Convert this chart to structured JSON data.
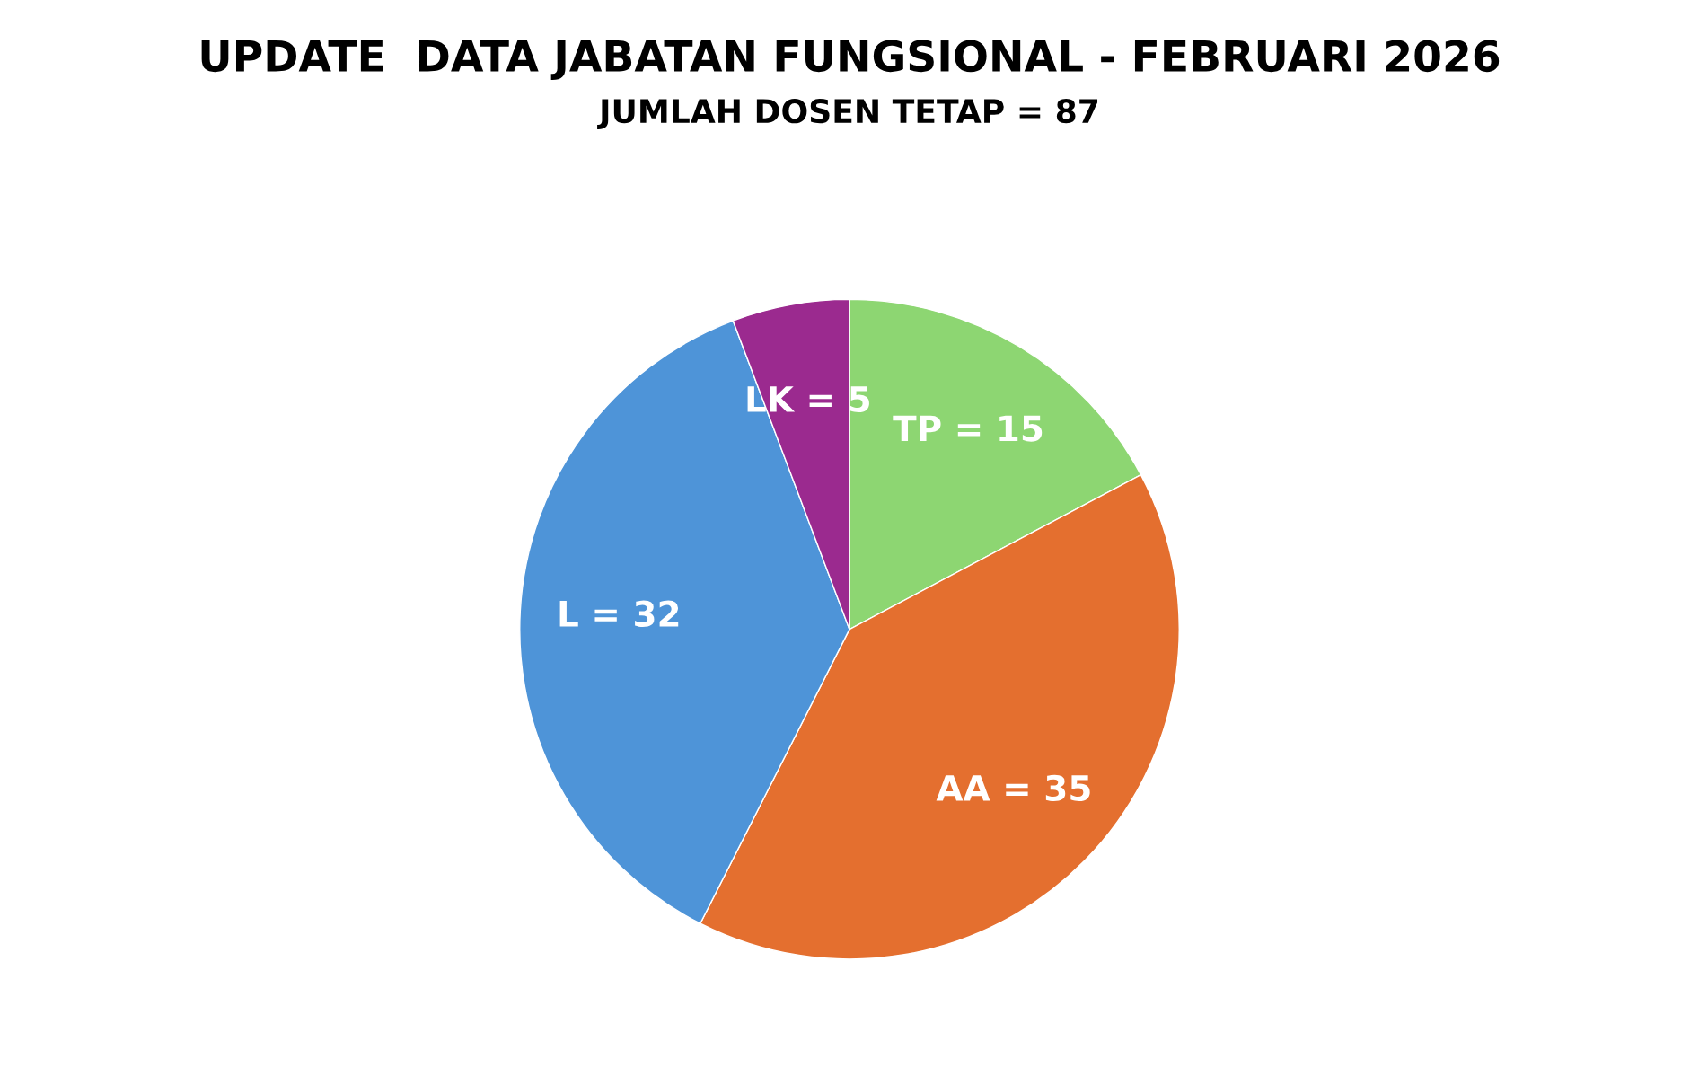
{
  "chart_data": {
    "type": "pie",
    "title": "UPDATE  DATA JABATAN FUNGSIONAL - FEBRUARI 2026",
    "subtitle": "JUMLAH DOSEN TETAP = 87",
    "categories": [
      "TP = 15",
      "AA = 35",
      "L = 32",
      "LK = 5"
    ],
    "values": [
      15,
      35,
      32,
      5
    ],
    "colors": [
      "#8dd672",
      "#e46f2f",
      "#4e94d8",
      "#9b2a8f"
    ],
    "legend": false
  }
}
